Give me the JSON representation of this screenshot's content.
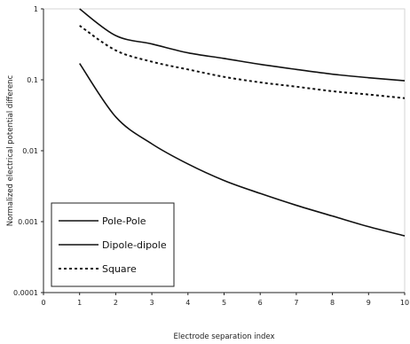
{
  "chart_data": {
    "type": "line",
    "xlabel": "Electrode separation index",
    "ylabel": "Normalized electrical potential differenc",
    "x_ticks": [
      "0",
      "1",
      "2",
      "3",
      "4",
      "5",
      "6",
      "7",
      "8",
      "9",
      "10"
    ],
    "y_ticks": [
      "0.0001",
      "0.001",
      "0.01",
      "0.1",
      "1"
    ],
    "xlim": [
      0,
      10
    ],
    "ylim": [
      0.0001,
      1
    ],
    "yscale": "log",
    "grid": false,
    "legend_placement": "bottom-left",
    "series": [
      {
        "name": "Pole-Pole",
        "style": "solid",
        "x": [
          1,
          2,
          3,
          4,
          5,
          6,
          7,
          8,
          9,
          10
        ],
        "y": [
          1.0,
          0.42,
          0.32,
          0.24,
          0.2,
          0.165,
          0.14,
          0.12,
          0.107,
          0.097
        ]
      },
      {
        "name": "Dipole-dipole",
        "style": "solid",
        "x": [
          1,
          2,
          3,
          4,
          5,
          6,
          7,
          8,
          9,
          10
        ],
        "y": [
          0.17,
          0.03,
          0.0125,
          0.0065,
          0.0038,
          0.0025,
          0.0017,
          0.0012,
          0.00085,
          0.00063
        ]
      },
      {
        "name": "Square",
        "style": "dashed",
        "x": [
          1,
          2,
          3,
          4,
          5,
          6,
          7,
          8,
          9,
          10
        ],
        "y": [
          0.58,
          0.26,
          0.18,
          0.14,
          0.11,
          0.092,
          0.08,
          0.069,
          0.062,
          0.055
        ]
      }
    ]
  }
}
